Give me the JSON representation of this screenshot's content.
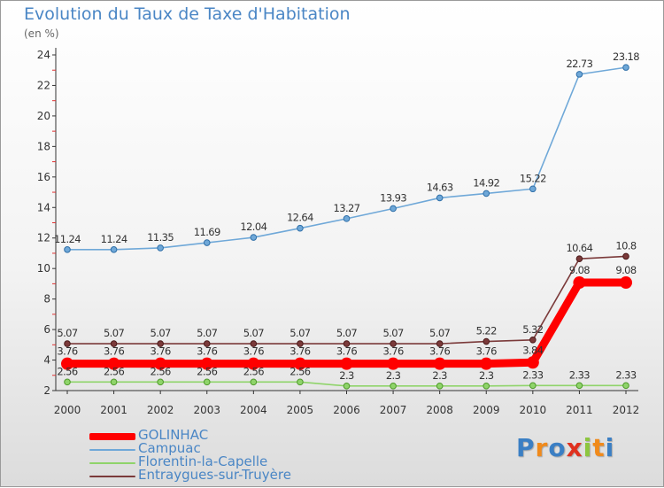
{
  "header": {
    "title": "Evolution du Taux de Taxe d'Habitation",
    "unit": "(en %)"
  },
  "brand": {
    "letters": [
      "P",
      "r",
      "o",
      "x",
      "i",
      "t",
      "i"
    ],
    "colors": [
      "#3b7fc4",
      "#f08a1c",
      "#3b7fc4",
      "#e0301e",
      "#8dc63f",
      "#f08a1c",
      "#3b7fc4"
    ]
  },
  "chart_data": {
    "type": "line",
    "x": [
      "2000",
      "2001",
      "2002",
      "2003",
      "2004",
      "2005",
      "2006",
      "2007",
      "2008",
      "2009",
      "2010",
      "2011",
      "2012"
    ],
    "ylim": [
      2,
      24
    ],
    "yticks": [
      "2",
      "4",
      "6",
      "8",
      "10",
      "12",
      "14",
      "16",
      "18",
      "20",
      "22",
      "24"
    ],
    "grid": false,
    "legend_position": "bottom-left",
    "series": [
      {
        "name": "GOLINHAC",
        "color": "#ff0000",
        "values": [
          3.76,
          3.76,
          3.76,
          3.76,
          3.76,
          3.76,
          3.76,
          3.76,
          3.76,
          3.76,
          3.84,
          9.08,
          9.08
        ],
        "labels": [
          "3.76",
          "3.76",
          "3.76",
          "3.76",
          "3.76",
          "3.76",
          "3.76",
          "3.76",
          "3.76",
          "3.76",
          "3.84",
          "9.08",
          "9.08"
        ]
      },
      {
        "name": "Campuac",
        "color": "#6fa8d8",
        "values": [
          11.24,
          11.24,
          11.35,
          11.69,
          12.04,
          12.64,
          13.27,
          13.93,
          14.63,
          14.92,
          15.22,
          22.73,
          23.18
        ],
        "labels": [
          "11.24",
          "11.24",
          "11.35",
          "11.69",
          "12.04",
          "12.64",
          "13.27",
          "13.93",
          "14.63",
          "14.92",
          "15.22",
          "22.73",
          "23.18"
        ]
      },
      {
        "name": "Florentin-la-Capelle",
        "color": "#8fd46a",
        "values": [
          2.56,
          2.56,
          2.56,
          2.56,
          2.56,
          2.56,
          2.3,
          2.3,
          2.3,
          2.3,
          2.33,
          2.33,
          2.33
        ],
        "labels": [
          "2.56",
          "2.56",
          "2.56",
          "2.56",
          "2.56",
          "2.56",
          "2.3",
          "2.3",
          "2.3",
          "2.3",
          "2.33",
          "2.33",
          "2.33"
        ]
      },
      {
        "name": "Entraygues-sur-Truyère",
        "color": "#7b3a3a",
        "values": [
          5.07,
          5.07,
          5.07,
          5.07,
          5.07,
          5.07,
          5.07,
          5.07,
          5.07,
          5.22,
          5.32,
          10.64,
          10.8
        ],
        "labels": [
          "5.07",
          "5.07",
          "5.07",
          "5.07",
          "5.07",
          "5.07",
          "5.07",
          "5.07",
          "5.07",
          "5.22",
          "5.32",
          "10.64",
          "10.8"
        ]
      }
    ]
  }
}
